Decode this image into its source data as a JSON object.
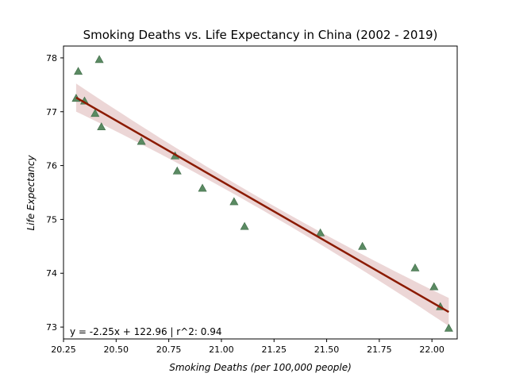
{
  "chart_data": {
    "type": "scatter",
    "title": "Smoking Deaths vs. Life Expectancy in China (2002 - 2019)",
    "xlabel": "Smoking Deaths (per 100,000 people)",
    "ylabel": "Life Expectancy",
    "xlim": [
      20.25,
      22.12
    ],
    "ylim": [
      72.78,
      78.22
    ],
    "xticks": [
      "20.25",
      "20.50",
      "20.75",
      "21.00",
      "21.25",
      "21.50",
      "21.75",
      "22.00"
    ],
    "yticks": [
      "73",
      "74",
      "75",
      "76",
      "77",
      "78"
    ],
    "points": [
      {
        "x": 20.31,
        "y": 77.25
      },
      {
        "x": 20.32,
        "y": 77.75
      },
      {
        "x": 20.35,
        "y": 77.2
      },
      {
        "x": 20.4,
        "y": 76.97
      },
      {
        "x": 20.42,
        "y": 77.97
      },
      {
        "x": 20.43,
        "y": 76.72
      },
      {
        "x": 20.62,
        "y": 76.45
      },
      {
        "x": 20.78,
        "y": 76.18
      },
      {
        "x": 20.79,
        "y": 75.9
      },
      {
        "x": 20.91,
        "y": 75.58
      },
      {
        "x": 21.06,
        "y": 75.33
      },
      {
        "x": 21.11,
        "y": 74.87
      },
      {
        "x": 21.47,
        "y": 74.75
      },
      {
        "x": 21.67,
        "y": 74.5
      },
      {
        "x": 21.92,
        "y": 74.1
      },
      {
        "x": 22.01,
        "y": 73.75
      },
      {
        "x": 22.04,
        "y": 73.38
      },
      {
        "x": 22.08,
        "y": 72.98
      }
    ],
    "regression": {
      "slope": -2.25,
      "intercept": 122.96,
      "x_range": [
        20.31,
        22.08
      ]
    },
    "equation_text": "y = -2.25x + 122.96 | r^2: 0.94",
    "colors": {
      "points": "#5a8a62",
      "point_edge": "#3f6b47",
      "line": "#8b1a00",
      "band": "#e6c8c8",
      "annotation": "#8b1a00"
    },
    "grid": false,
    "marker": "triangle"
  }
}
